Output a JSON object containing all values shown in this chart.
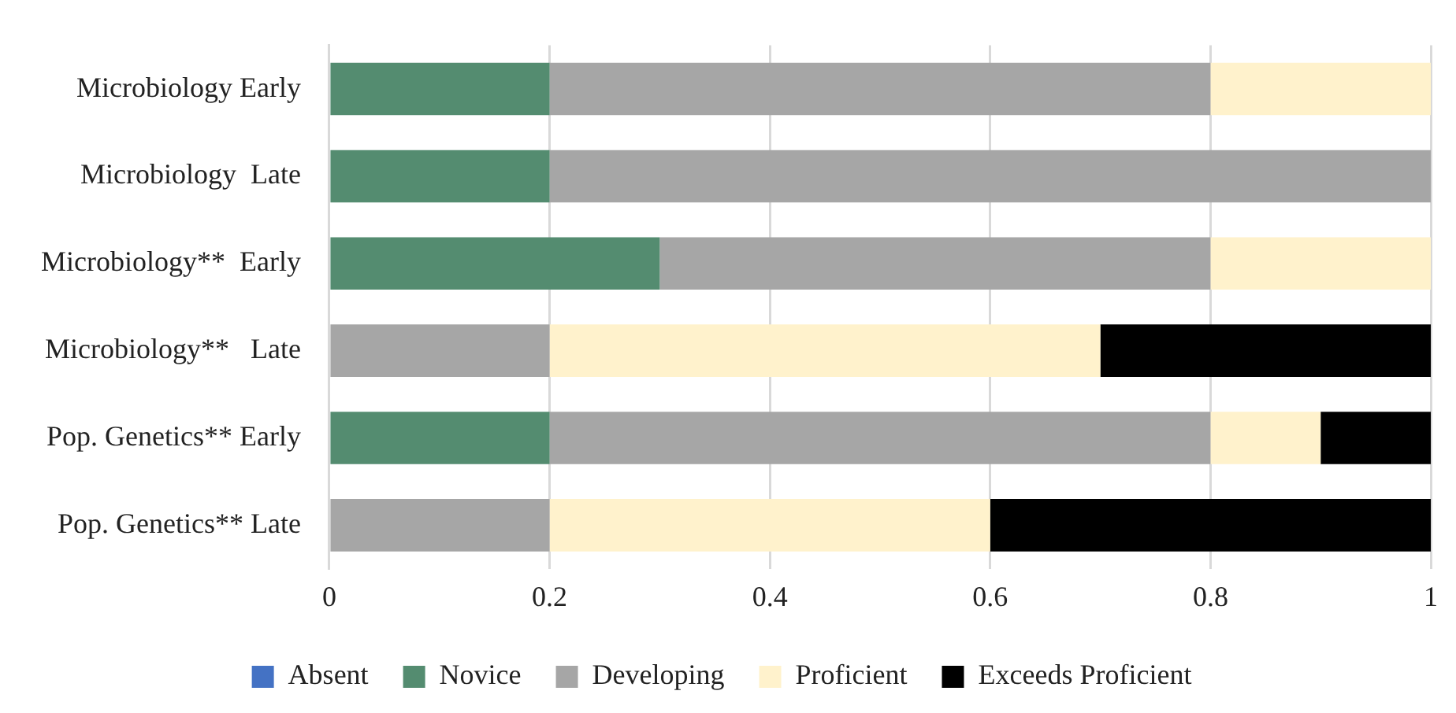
{
  "chart_data": {
    "type": "bar",
    "orientation": "horizontal",
    "stacked": true,
    "categories": [
      "Microbiology Early",
      "Microbiology  Late",
      "Microbiology**  Early",
      "Microbiology**   Late",
      "Pop. Genetics** Early",
      "Pop. Genetics** Late"
    ],
    "series": [
      {
        "name": "Absent",
        "color": "#4472c4",
        "values": [
          0,
          0,
          0,
          0,
          0,
          0
        ]
      },
      {
        "name": "Novice",
        "color": "#548c70",
        "values": [
          0.2,
          0.2,
          0.3,
          0,
          0.2,
          0
        ]
      },
      {
        "name": "Developing",
        "color": "#a6a6a6",
        "values": [
          0.6,
          0.8,
          0.5,
          0.2,
          0.6,
          0.2
        ]
      },
      {
        "name": "Proficient",
        "color": "#fff2cc",
        "values": [
          0.2,
          0,
          0.2,
          0.5,
          0.1,
          0.4
        ]
      },
      {
        "name": "Exceeds Proficient",
        "color": "#000000",
        "values": [
          0,
          0,
          0,
          0.3,
          0.1,
          0.4
        ]
      }
    ],
    "xlim": [
      0,
      1
    ],
    "xticks": [
      0,
      0.2,
      0.4,
      0.6,
      0.8,
      1
    ],
    "grid": "x",
    "legend": "bottom"
  }
}
